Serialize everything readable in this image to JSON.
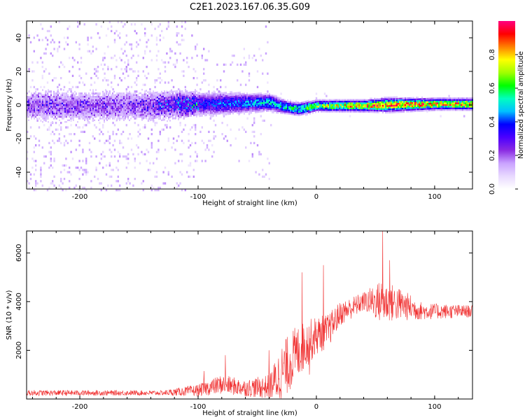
{
  "title": "C2E1.2023.167.06.35.G09",
  "chart_data": [
    {
      "type": "heatmap",
      "xlabel": "Height of straight line (km)",
      "ylabel": "Frequency (Hz)",
      "xlim": [
        -245,
        132
      ],
      "ylim": [
        -50,
        50
      ],
      "xticks": [
        -200,
        -100,
        0,
        100
      ],
      "yticks": [
        -40,
        -20,
        0,
        20,
        40
      ],
      "colorbar": {
        "label": "Normalized spectral amplitude",
        "range": [
          0,
          1
        ],
        "ticks": [
          0.0,
          0.2,
          0.4,
          0.6,
          0.8
        ],
        "colors": [
          "#ffffff",
          "#e8d9ff",
          "#c9a2ff",
          "#8a2be2",
          "#4b00ff",
          "#0000ff",
          "#00c0ff",
          "#00ffbf",
          "#00ff00",
          "#a0ff00",
          "#ffff00",
          "#ff8000",
          "#ff0000",
          "#ff0080"
        ]
      },
      "ridge": [
        {
          "x": -245,
          "y": 0,
          "width": 8,
          "amp": 0.2
        },
        {
          "x": -150,
          "y": 0,
          "width": 8,
          "amp": 0.2
        },
        {
          "x": -100,
          "y": 1,
          "width": 6,
          "amp": 0.35
        },
        {
          "x": -40,
          "y": 2,
          "width": 4,
          "amp": 0.5
        },
        {
          "x": -25,
          "y": -1,
          "width": 3,
          "amp": 0.55
        },
        {
          "x": -15,
          "y": -2,
          "width": 3,
          "amp": 0.6
        },
        {
          "x": 0,
          "y": 0,
          "width": 2.5,
          "amp": 0.7
        },
        {
          "x": 40,
          "y": 0,
          "width": 2.5,
          "amp": 0.85
        },
        {
          "x": 60,
          "y": 0.5,
          "width": 3,
          "amp": 0.9
        },
        {
          "x": 100,
          "y": 1,
          "width": 2.5,
          "amp": 0.85
        },
        {
          "x": 132,
          "y": 1,
          "width": 2.5,
          "amp": 0.85
        }
      ],
      "noise_extent": [
        {
          "x": -245,
          "spread": 50
        },
        {
          "x": -110,
          "spread": 50
        },
        {
          "x": -80,
          "spread": 25
        },
        {
          "x": -40,
          "spread": 50
        },
        {
          "x": -38,
          "spread": 8
        },
        {
          "x": 132,
          "spread": 6
        }
      ]
    },
    {
      "type": "line",
      "color": "#f03030",
      "xlabel": "Height of straight line (km)",
      "ylabel": "SNR (10 * v/v)",
      "xlim": [
        -245,
        132
      ],
      "ylim": [
        0,
        6900
      ],
      "xticks": [
        -200,
        -100,
        0,
        100
      ],
      "yticks": [
        2000,
        4000,
        6000
      ],
      "envelope": [
        {
          "x": -245,
          "mean": 250,
          "amp": 120
        },
        {
          "x": -130,
          "mean": 250,
          "amp": 100
        },
        {
          "x": -100,
          "mean": 350,
          "amp": 250
        },
        {
          "x": -80,
          "mean": 600,
          "amp": 400
        },
        {
          "x": -60,
          "mean": 450,
          "amp": 350
        },
        {
          "x": -40,
          "mean": 500,
          "amp": 500
        },
        {
          "x": -30,
          "mean": 1000,
          "amp": 1200
        },
        {
          "x": -20,
          "mean": 1700,
          "amp": 1200
        },
        {
          "x": -10,
          "mean": 2200,
          "amp": 1000
        },
        {
          "x": 0,
          "mean": 2600,
          "amp": 800
        },
        {
          "x": 10,
          "mean": 2800,
          "amp": 700
        },
        {
          "x": 20,
          "mean": 3500,
          "amp": 500
        },
        {
          "x": 40,
          "mean": 4000,
          "amp": 400
        },
        {
          "x": 55,
          "mean": 4000,
          "amp": 900
        },
        {
          "x": 70,
          "mean": 3900,
          "amp": 700
        },
        {
          "x": 90,
          "mean": 3600,
          "amp": 350
        },
        {
          "x": 132,
          "mean": 3600,
          "amp": 250
        }
      ],
      "spikes": [
        {
          "x": -95,
          "y": 1150
        },
        {
          "x": -77,
          "y": 1800
        },
        {
          "x": -40,
          "y": 2000
        },
        {
          "x": -12,
          "y": 5200
        },
        {
          "x": -6,
          "y": 1000
        },
        {
          "x": 6,
          "y": 5500
        },
        {
          "x": 56,
          "y": 6900
        },
        {
          "x": 62,
          "y": 5700
        }
      ]
    }
  ]
}
